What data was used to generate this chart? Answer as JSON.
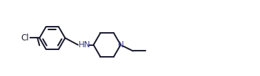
{
  "background_color": "#ffffff",
  "bond_color": "#1a1a2e",
  "atom_color_N": "#3a3a8c",
  "line_width": 1.5,
  "figsize": [
    3.77,
    1.11
  ],
  "dpi": 100,
  "Cl_label": "Cl",
  "N_label": "N",
  "HN_label": "HN",
  "font_size": 8.5,
  "xlim": [
    0.0,
    10.5
  ],
  "ylim": [
    0.3,
    2.7
  ]
}
